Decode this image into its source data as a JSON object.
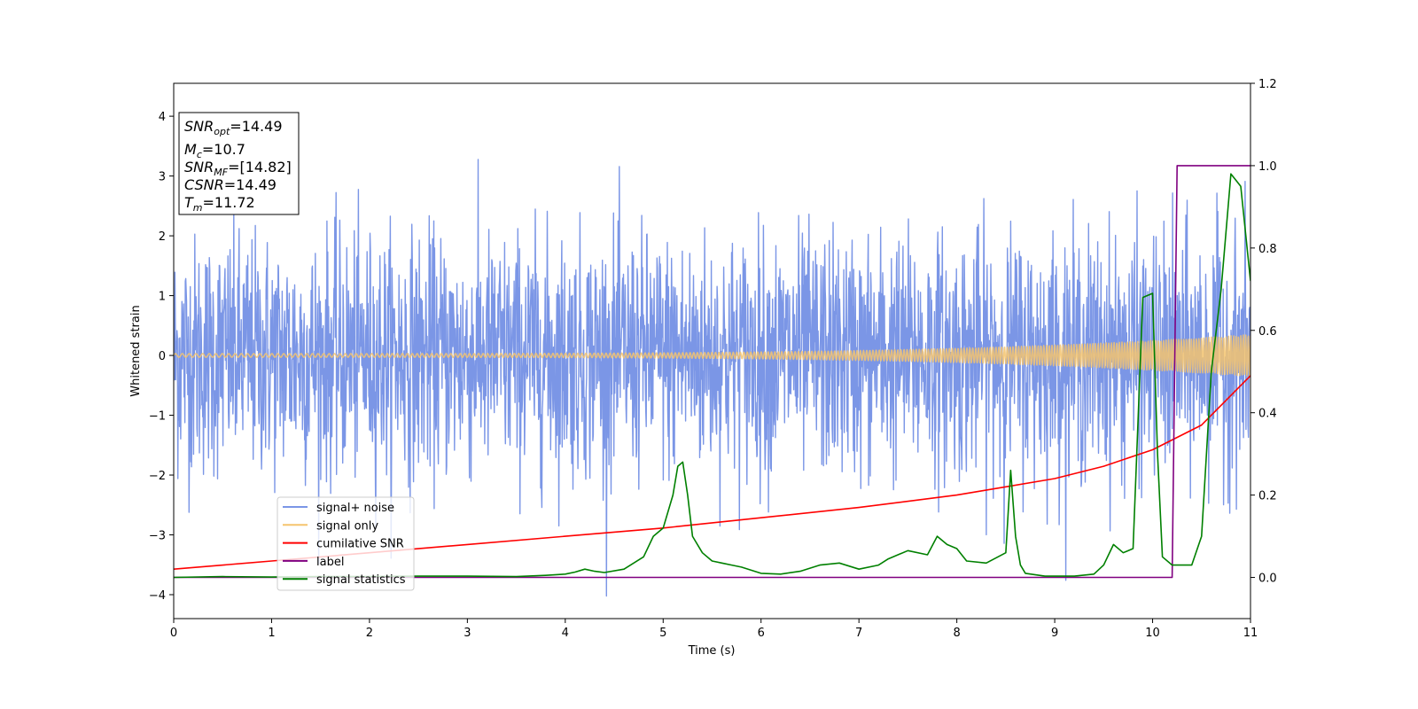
{
  "chart_data": {
    "type": "line",
    "xlabel": "Time (s)",
    "ylabel": "Whitened strain",
    "xlim": [
      0,
      11
    ],
    "ylim_left": [
      -4.4,
      4.55
    ],
    "ylim_right": [
      -0.1,
      1.2
    ],
    "xticks": [
      0,
      1,
      2,
      3,
      4,
      5,
      6,
      7,
      8,
      9,
      10,
      11
    ],
    "yticks_left": [
      -4,
      -3,
      -2,
      -1,
      0,
      1,
      2,
      3,
      4
    ],
    "yticks_left_labels": [
      "−4",
      "−3",
      "−2",
      "−1",
      "0",
      "1",
      "2",
      "3",
      "4"
    ],
    "yticks_right": [
      0.0,
      0.2,
      0.4,
      0.6,
      0.8,
      1.0,
      1.2
    ],
    "yticks_right_labels": [
      "0.0",
      "0.2",
      "0.4",
      "0.6",
      "0.8",
      "1.0",
      "1.2"
    ],
    "grid": false,
    "legend_position": "lower-left",
    "annotation": {
      "lines": [
        {
          "base": "SNR",
          "sub": "opt",
          "value": "=14.49"
        },
        {
          "base": "M",
          "sub": "c",
          "value": "=10.7"
        },
        {
          "base": "SNR",
          "sub": "MF",
          "value": "=[14.82]"
        },
        {
          "base": "CSNR",
          "sub": "",
          "value": "=14.49"
        },
        {
          "base": "T",
          "sub": "m",
          "value": "=11.72"
        }
      ]
    },
    "series": [
      {
        "name": "signal+ noise",
        "axis": "left",
        "color": "#7b96e6",
        "kind": "noise",
        "sigma": 1.0,
        "max_abs": 4.2,
        "x_range": [
          0,
          11
        ]
      },
      {
        "name": "signal only",
        "axis": "left",
        "color": "#f5c46e",
        "kind": "chirp",
        "amplitude_start": 0.03,
        "amplitude_end": 0.35,
        "x_range": [
          0,
          11
        ]
      },
      {
        "name": "cumilative SNR",
        "axis": "right",
        "color": "#ff0000",
        "x": [
          0,
          1,
          2,
          3,
          4,
          5,
          6,
          7,
          8,
          8.5,
          9,
          9.5,
          10,
          10.5,
          11
        ],
        "y": [
          0.02,
          0.04,
          0.06,
          0.08,
          0.1,
          0.12,
          0.145,
          0.17,
          0.2,
          0.22,
          0.24,
          0.27,
          0.31,
          0.37,
          0.49
        ]
      },
      {
        "name": "label",
        "axis": "right",
        "color": "#800080",
        "x": [
          0,
          10.2,
          10.25,
          11
        ],
        "y": [
          0.0,
          0.0,
          1.0,
          1.0
        ]
      },
      {
        "name": "signal statistics",
        "axis": "right",
        "color": "#008000",
        "x": [
          0,
          0.5,
          1,
          1.5,
          2,
          2.5,
          3,
          3.5,
          3.8,
          4.0,
          4.1,
          4.2,
          4.3,
          4.4,
          4.6,
          4.8,
          4.9,
          5.0,
          5.1,
          5.15,
          5.2,
          5.25,
          5.3,
          5.4,
          5.5,
          5.6,
          5.7,
          5.8,
          6.0,
          6.2,
          6.4,
          6.6,
          6.8,
          7.0,
          7.2,
          7.3,
          7.5,
          7.7,
          7.8,
          7.9,
          8.0,
          8.1,
          8.3,
          8.5,
          8.55,
          8.6,
          8.65,
          8.7,
          8.9,
          9.2,
          9.4,
          9.5,
          9.6,
          9.7,
          9.8,
          9.9,
          10.0,
          10.05,
          10.1,
          10.2,
          10.4,
          10.5,
          10.6,
          10.7,
          10.8,
          10.9,
          11.0
        ],
        "y": [
          0.0,
          0.002,
          0.001,
          0.002,
          0.002,
          0.003,
          0.003,
          0.002,
          0.005,
          0.008,
          0.013,
          0.02,
          0.015,
          0.012,
          0.02,
          0.05,
          0.1,
          0.12,
          0.2,
          0.27,
          0.28,
          0.2,
          0.1,
          0.06,
          0.04,
          0.035,
          0.03,
          0.025,
          0.01,
          0.008,
          0.015,
          0.03,
          0.035,
          0.02,
          0.03,
          0.045,
          0.065,
          0.055,
          0.1,
          0.08,
          0.07,
          0.04,
          0.035,
          0.06,
          0.26,
          0.1,
          0.03,
          0.01,
          0.003,
          0.003,
          0.008,
          0.03,
          0.08,
          0.06,
          0.07,
          0.68,
          0.69,
          0.3,
          0.05,
          0.03,
          0.03,
          0.1,
          0.5,
          0.7,
          0.98,
          0.95,
          0.72
        ]
      }
    ]
  }
}
